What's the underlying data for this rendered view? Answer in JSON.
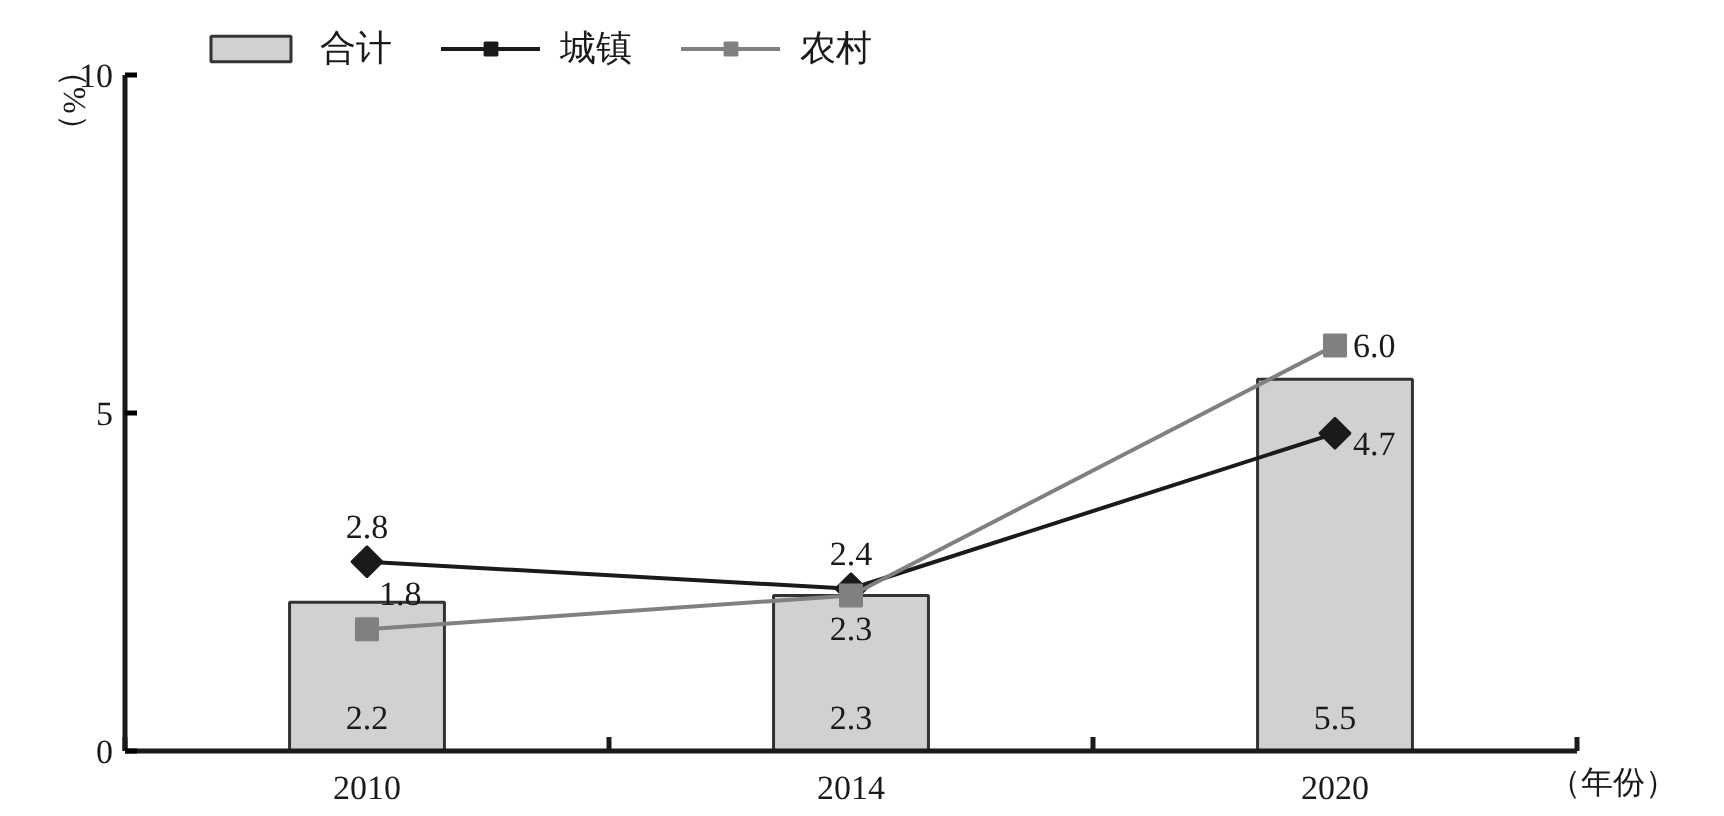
{
  "chart_data": {
    "type": "bar",
    "categories": [
      "2010",
      "2014",
      "2020"
    ],
    "xlabel": "（年份）",
    "ylabel": "（%）",
    "ylim": [
      0,
      10
    ],
    "yticks": [
      0,
      5,
      10
    ],
    "grid": false,
    "legend": "top",
    "series": [
      {
        "name": "合计",
        "color": "#d0d1d3",
        "values": [
          2.2,
          2.3,
          5.5
        ],
        "value_labels": [
          "2.2",
          "2.3",
          "5.5"
        ]
      },
      {
        "name": "城镇",
        "type": "line",
        "color": "#1a1a1a",
        "marker": "diamond",
        "line_style": "solid",
        "values": [
          2.8,
          2.4,
          4.7
        ],
        "value_labels": [
          "2.8",
          "2.4",
          "4.7"
        ]
      },
      {
        "name": "农村",
        "type": "line",
        "color": "#808080",
        "marker": "square",
        "line_style": "solid",
        "values": [
          1.8,
          2.3,
          6.0
        ],
        "value_labels": [
          "1.8",
          "2.3",
          "6.0"
        ]
      }
    ]
  }
}
